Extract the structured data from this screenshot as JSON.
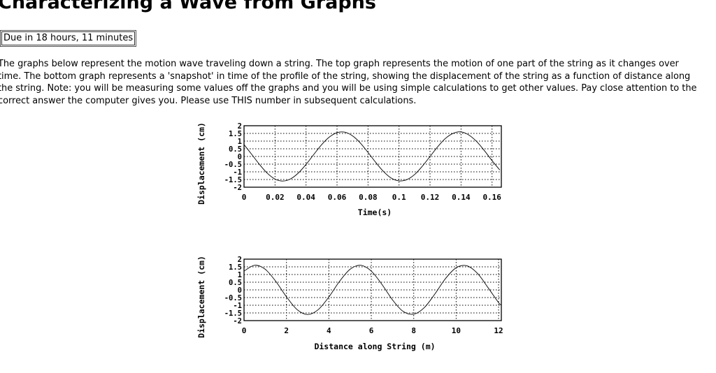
{
  "page": {
    "title": "Characterizing a Wave from Graphs",
    "due": "Due in 18 hours, 11 minutes",
    "description": "The graphs below represent the motion wave traveling down a string. The top graph represents the motion of one part of the string as it changes over time. The bottom graph represents a 'snapshot' in time of the profile of the string, showing the displacement of the string as a function of distance along the string. Note: you will be measuring some values off the graphs and you will be using simple calculations to get other values. Pay close attention to the correct answer the computer gives you. Please use THIS number in subsequent calculations."
  },
  "chart_data": [
    {
      "type": "line",
      "xlabel": "Time(s)",
      "ylabel": "Displacement (cm)",
      "xlim": [
        0,
        0.166
      ],
      "ylim": [
        -2,
        2
      ],
      "grid": true,
      "xticks": [
        "0",
        "0.02",
        "0.04",
        "0.06",
        "0.08",
        "0.1",
        "0.12",
        "0.14",
        "0.16"
      ],
      "xtick_values": [
        0,
        0.02,
        0.04,
        0.06,
        0.08,
        0.1,
        0.12,
        0.14,
        0.16
      ],
      "yticks": [
        "2",
        "1.5",
        "1",
        "0.5",
        "0",
        "-0.5",
        "-1",
        "-1.5",
        "-2"
      ],
      "ytick_values": [
        2,
        1.5,
        1,
        0.5,
        0,
        -0.5,
        -1,
        -1.5,
        -2
      ],
      "line_color": "#000000",
      "x": [
        0,
        0.005,
        0.01,
        0.015,
        0.02,
        0.025,
        0.03,
        0.035,
        0.04,
        0.045,
        0.05,
        0.055,
        0.06,
        0.065,
        0.07,
        0.075,
        0.08,
        0.085,
        0.09,
        0.095,
        0.1,
        0.105,
        0.11,
        0.115,
        0.12,
        0.125,
        0.13,
        0.135,
        0.14,
        0.145,
        0.15,
        0.155,
        0.16,
        0.165
      ],
      "y": [
        0.77,
        0.13,
        -0.52,
        -1.09,
        -1.47,
        -1.6,
        -1.46,
        -1.08,
        -0.52,
        0.13,
        0.76,
        1.26,
        1.55,
        1.58,
        1.34,
        0.88,
        0.26,
        -0.39,
        -0.98,
        -1.41,
        -1.59,
        -1.51,
        -1.18,
        -0.64,
        0.0,
        0.64,
        1.18,
        1.51,
        1.6,
        1.4,
        0.98,
        0.39,
        -0.27,
        -0.88
      ]
    },
    {
      "type": "line",
      "xlabel": "Distance along String (m)",
      "ylabel": "Displacement (cm)",
      "xlim": [
        0,
        12.13
      ],
      "ylim": [
        -2,
        2
      ],
      "grid": true,
      "xticks": [
        "0",
        "2",
        "4",
        "6",
        "8",
        "10",
        "12"
      ],
      "xtick_values": [
        0,
        2,
        4,
        6,
        8,
        10,
        12
      ],
      "yticks": [
        "2",
        "1.5",
        "1",
        "0.5",
        "0",
        "-0.5",
        "-1",
        "-1.5",
        "-2"
      ],
      "ytick_values": [
        2,
        1.5,
        1,
        0.5,
        0,
        -0.5,
        -1,
        -1.5,
        -2
      ],
      "line_color": "#000000",
      "x": [
        0,
        0.5,
        1,
        1.5,
        2,
        2.5,
        3,
        3.5,
        4,
        4.5,
        5,
        5.5,
        6,
        6.5,
        7,
        7.5,
        8,
        8.5,
        9,
        9.5,
        10,
        10.5,
        11,
        11.5,
        12,
        12.13
      ],
      "y": [
        1.22,
        1.6,
        1.34,
        0.55,
        -0.45,
        -1.28,
        -1.6,
        -1.28,
        -0.46,
        0.55,
        1.34,
        1.6,
        1.22,
        0.36,
        -0.65,
        -1.4,
        -1.58,
        -1.15,
        -0.26,
        0.74,
        1.44,
        1.57,
        1.08,
        0.15,
        -0.83,
        -0.98
      ]
    }
  ]
}
